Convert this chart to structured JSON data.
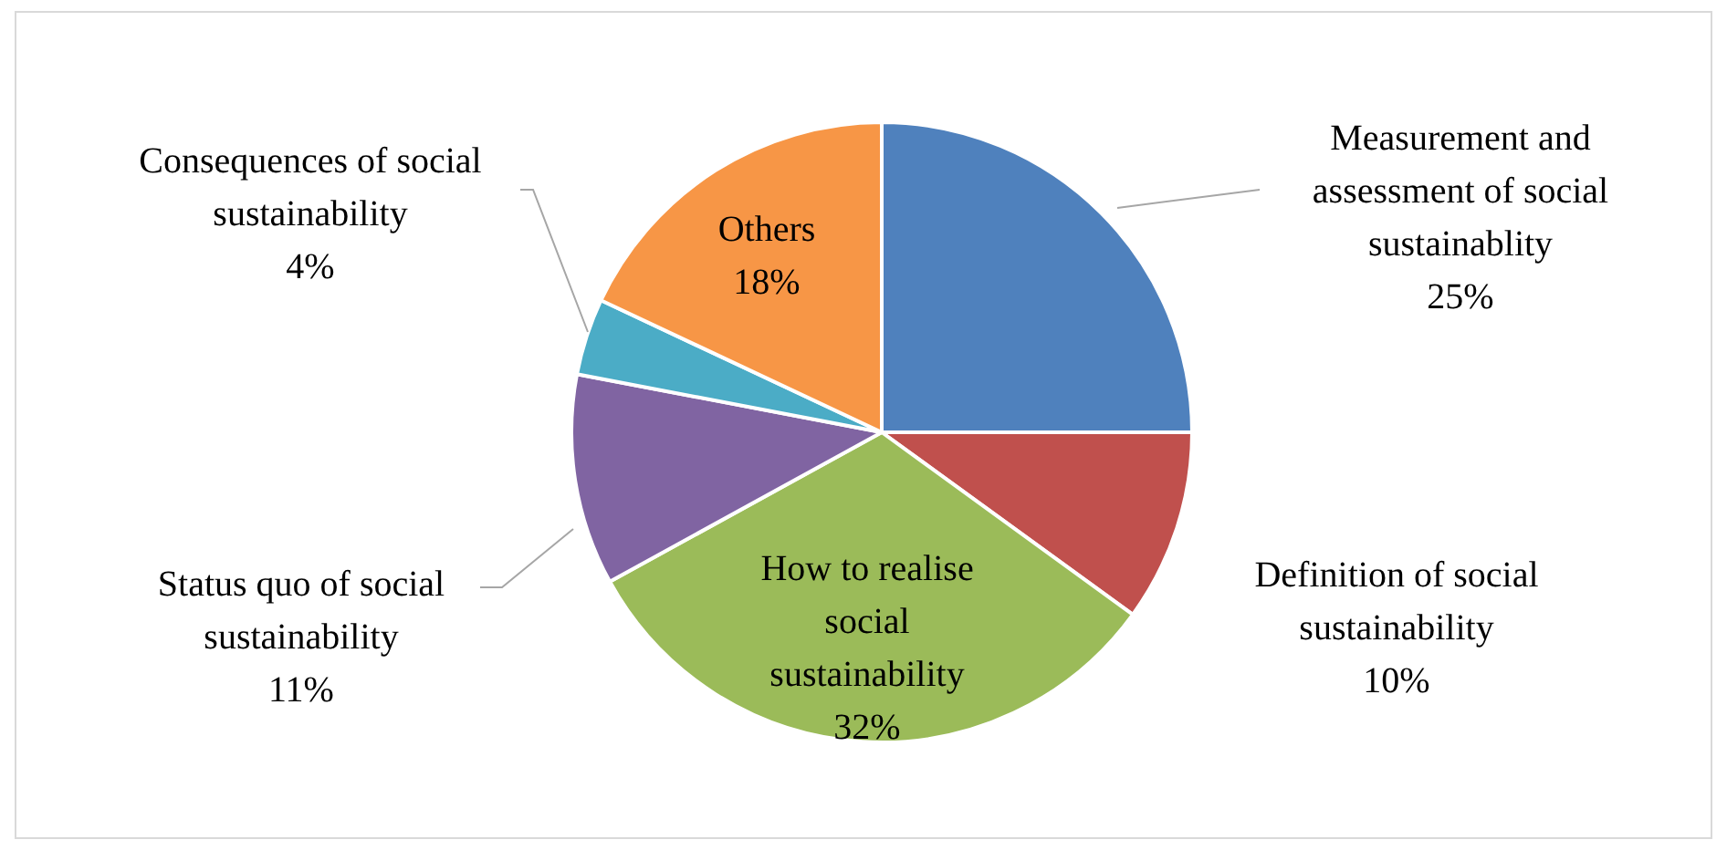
{
  "chart_data": {
    "type": "pie",
    "categories": [
      "Measurement and assessment of social sustainablity",
      "Definition of social sustainability",
      "How to realise social sustainability",
      "Status quo of social sustainability",
      "Consequences of social sustainability",
      "Others"
    ],
    "values": [
      25,
      10,
      32,
      11,
      4,
      18
    ],
    "colors": [
      "#4f81bd",
      "#c0504d",
      "#9bbb59",
      "#8064a2",
      "#4bacc6",
      "#f79646"
    ],
    "value_labels": [
      "25%",
      "10%",
      "32%",
      "11%",
      "4%",
      "18%"
    ],
    "legend": false
  }
}
